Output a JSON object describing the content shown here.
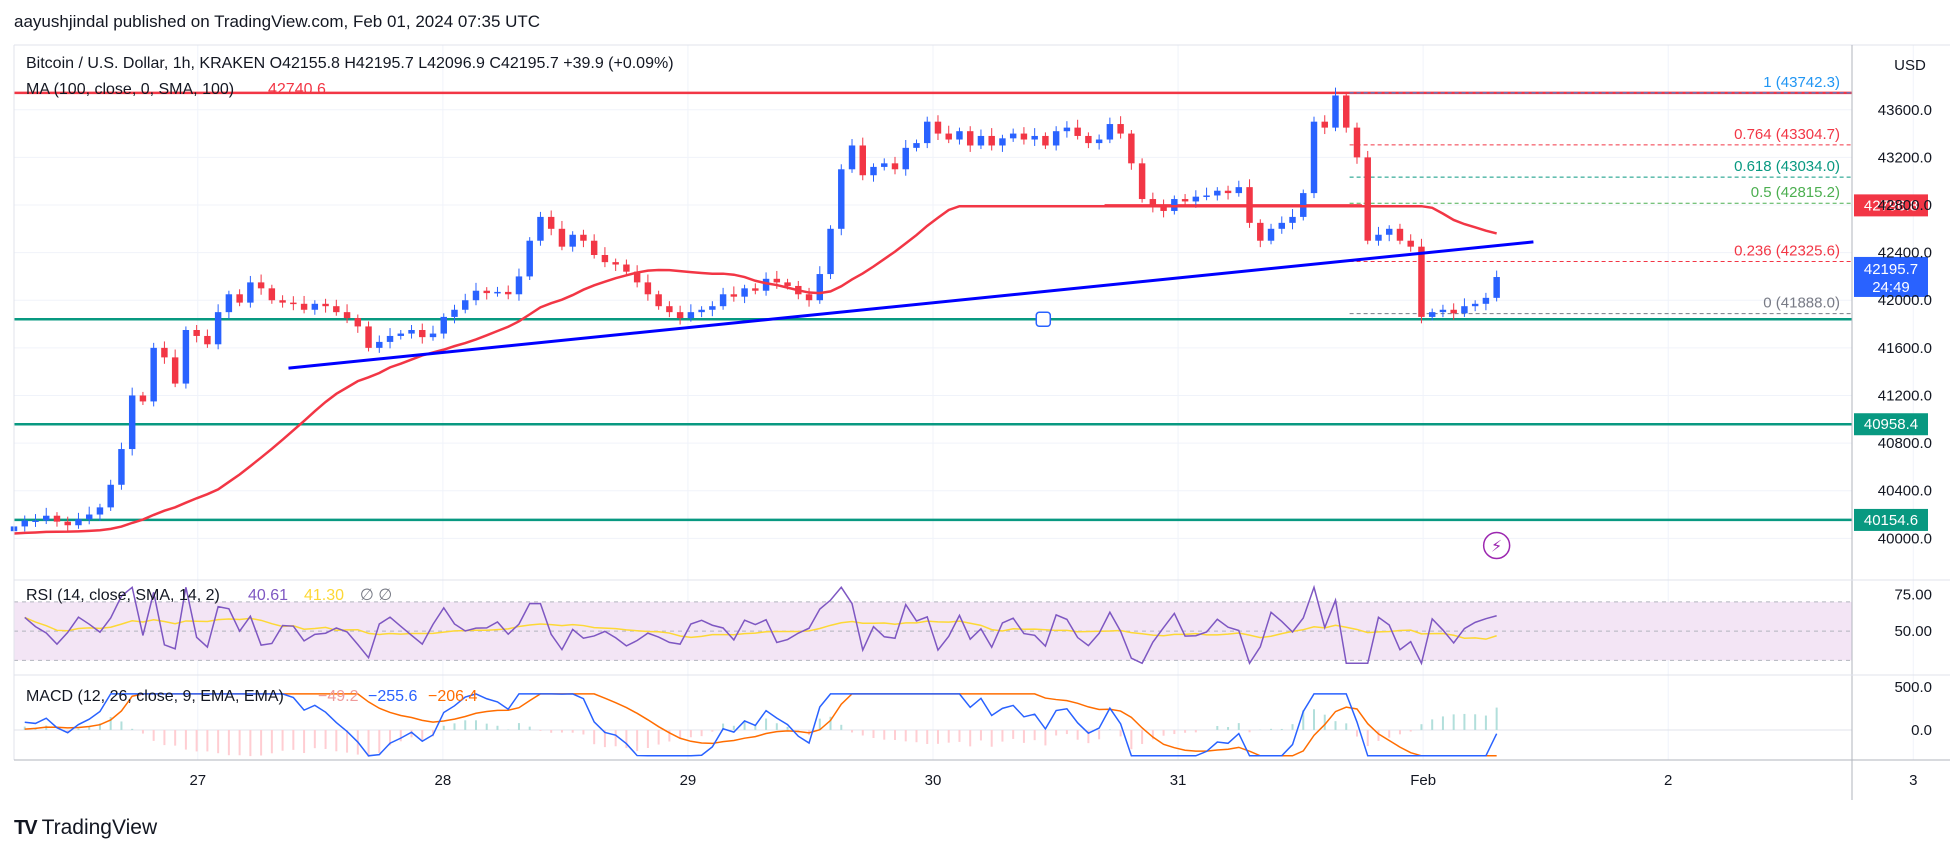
{
  "header": {
    "published": "aayushjindal published on TradingView.com, Feb 01, 2024 07:35 UTC"
  },
  "brand": {
    "name": "TradingView"
  },
  "price_axis": {
    "currency": "USD"
  },
  "chart_data": {
    "type": "candlestick",
    "symbol": "Bitcoin / U.S. Dollar, 1h, KRAKEN",
    "ohlc_label": {
      "open": "O42155.8",
      "high": "H42195.7",
      "low": "L42096.9",
      "close": "C42195.7",
      "change": "+39.9 (+0.09%)"
    },
    "ma_label": {
      "name": "MA (100, close, 0, SMA, 100)",
      "value": "42740.6"
    },
    "y_ticks": [
      "43600.0",
      "43200.0",
      "42800.0",
      "42400.0",
      "42000.0",
      "41600.0",
      "41200.0",
      "40800.0",
      "40400.0",
      "40000.0"
    ],
    "y_range": [
      39650,
      44060
    ],
    "x_ticks": [
      "27",
      "28",
      "29",
      "30",
      "31",
      "Feb",
      "2",
      "3"
    ],
    "x_range_days": [
      26.25,
      33.75
    ],
    "last_price": {
      "value": "42195.7",
      "countdown": "24:49",
      "color": "#2962ff"
    },
    "horizontal_levels": [
      {
        "price": 43742.3,
        "color": "#f23645",
        "label": null
      },
      {
        "price": 41840,
        "color": "#089981",
        "label": null
      },
      {
        "price": 40958.4,
        "color": "#089981",
        "label": "40958.4"
      },
      {
        "price": 40154.6,
        "color": "#089981",
        "label": "40154.6"
      }
    ],
    "resistance_segment": {
      "price": 42796.8,
      "label": "42796.8",
      "color": "#f23645",
      "from_day": 30.7,
      "to_day": 31.75
    },
    "trend_line": {
      "color": "#0000ff",
      "from": {
        "day": 27.37,
        "price": 41430
      },
      "to": {
        "day": 32.45,
        "price": 42490
      }
    },
    "fibonacci": {
      "levels": [
        {
          "ratio": "1",
          "price": "43742.3",
          "color": "#2196f3"
        },
        {
          "ratio": "0.764",
          "price": "43304.7",
          "color": "#f23645"
        },
        {
          "ratio": "0.618",
          "price": "43034.0",
          "color": "#089981"
        },
        {
          "ratio": "0.5",
          "price": "42815.2",
          "color": "#4caf50"
        },
        {
          "ratio": "0.236",
          "price": "42325.6",
          "color": "#f23645"
        },
        {
          "ratio": "0",
          "price": "41888.0",
          "color": "#787b86"
        }
      ]
    },
    "rsi": {
      "label": "RSI (14, close, SMA, 14, 2)",
      "value": "40.61",
      "ma_value": "41.30",
      "extras": "∅ ∅",
      "ticks": [
        "75.00",
        "50.00"
      ],
      "band": [
        30,
        70
      ]
    },
    "macd": {
      "label": "MACD (12, 26, close, 9, EMA, EMA)",
      "histogram": "−49.2",
      "macd": "−255.6",
      "signal": "−206.4",
      "ticks": [
        "500.0",
        "0.0"
      ]
    },
    "colors": {
      "up": "#2962ff",
      "down": "#f23645",
      "ma": "#f23645",
      "rsi": "#7e57c2",
      "rsi_ma": "#fdd835",
      "macd": "#2962ff",
      "signal": "#ff6d00"
    },
    "closes": [
      40100,
      40150,
      40150,
      40190,
      40140,
      40110,
      40160,
      40200,
      40260,
      40450,
      40750,
      41200,
      41150,
      41600,
      41520,
      41300,
      41750,
      41700,
      41630,
      41900,
      42050,
      41980,
      42150,
      42100,
      42000,
      41980,
      41970,
      41920,
      41970,
      41950,
      41900,
      41850,
      41780,
      41600,
      41650,
      41700,
      41720,
      41750,
      41690,
      41720,
      41860,
      41920,
      42000,
      42080,
      42060,
      42070,
      42050,
      42200,
      42500,
      42700,
      42600,
      42450,
      42550,
      42500,
      42380,
      42320,
      42300,
      42240,
      42150,
      42050,
      41950,
      41900,
      41850,
      41900,
      41920,
      41950,
      42050,
      42030,
      42100,
      42080,
      42180,
      42150,
      42120,
      42050,
      42000,
      42220,
      42600,
      43100,
      43300,
      43050,
      43120,
      43150,
      43100,
      43280,
      43320,
      43500,
      43400,
      43350,
      43420,
      43300,
      43380,
      43300,
      43360,
      43400,
      43350,
      43380,
      43300,
      43420,
      43450,
      43380,
      43320,
      43350,
      43480,
      43400,
      43150,
      42850,
      42780,
      42750,
      42850,
      42830,
      42870,
      42880,
      42920,
      42900,
      42950,
      42650,
      42500,
      42600,
      42650,
      42700,
      42900,
      43500,
      43450,
      43720,
      43450,
      43200,
      42500,
      42550,
      42600,
      42500,
      42450,
      41860,
      41900,
      41920,
      41890,
      41950,
      41970,
      42020,
      42195
    ]
  }
}
